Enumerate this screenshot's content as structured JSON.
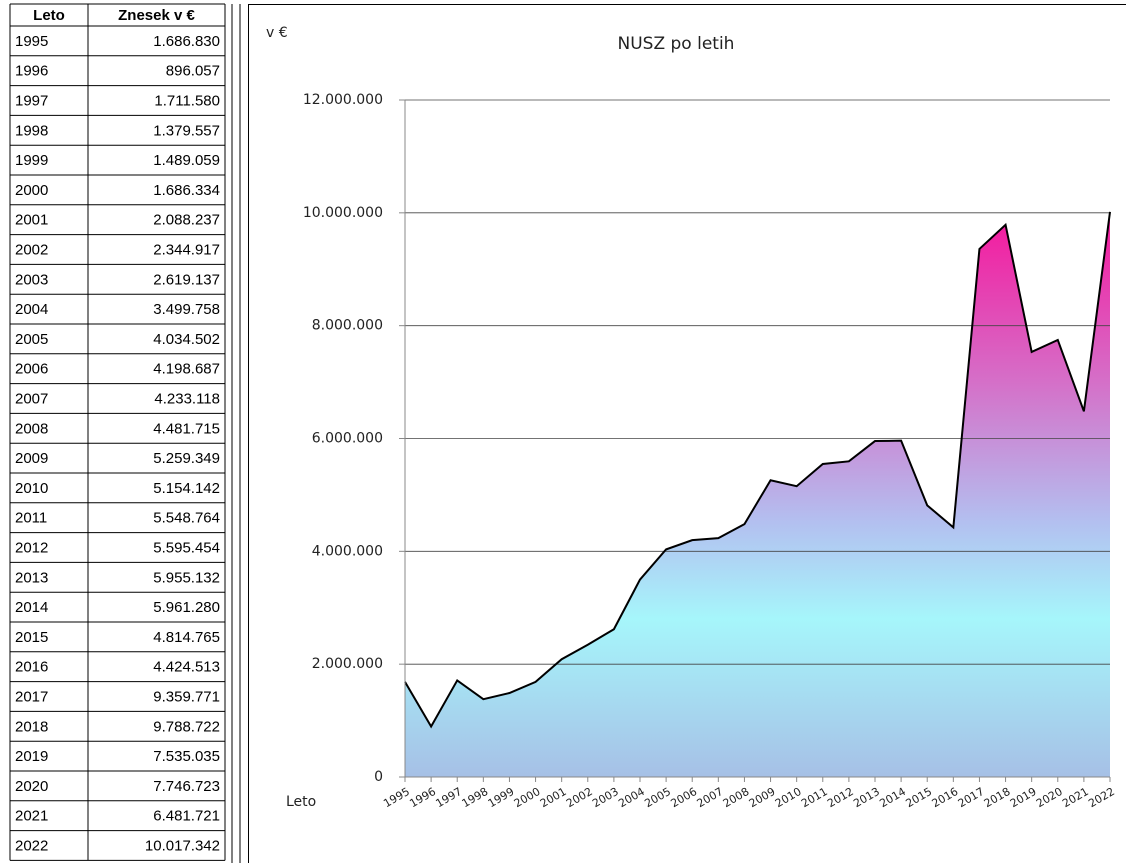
{
  "table": {
    "header": [
      "Leto",
      "Znesek v €"
    ],
    "rows": [
      [
        "1995",
        "1.686.830"
      ],
      [
        "1996",
        "896.057"
      ],
      [
        "1997",
        "1.711.580"
      ],
      [
        "1998",
        "1.379.557"
      ],
      [
        "1999",
        "1.489.059"
      ],
      [
        "2000",
        "1.686.334"
      ],
      [
        "2001",
        "2.088.237"
      ],
      [
        "2002",
        "2.344.917"
      ],
      [
        "2003",
        "2.619.137"
      ],
      [
        "2004",
        "3.499.758"
      ],
      [
        "2005",
        "4.034.502"
      ],
      [
        "2006",
        "4.198.687"
      ],
      [
        "2007",
        "4.233.118"
      ],
      [
        "2008",
        "4.481.715"
      ],
      [
        "2009",
        "5.259.349"
      ],
      [
        "2010",
        "5.154.142"
      ],
      [
        "2011",
        "5.548.764"
      ],
      [
        "2012",
        "5.595.454"
      ],
      [
        "2013",
        "5.955.132"
      ],
      [
        "2014",
        "5.961.280"
      ],
      [
        "2015",
        "4.814.765"
      ],
      [
        "2016",
        "4.424.513"
      ],
      [
        "2017",
        "9.359.771"
      ],
      [
        "2018",
        "9.788.722"
      ],
      [
        "2019",
        "7.535.035"
      ],
      [
        "2020",
        "7.746.723"
      ],
      [
        "2021",
        "6.481.721"
      ],
      [
        "2022",
        "10.017.342"
      ]
    ]
  },
  "chart_data": {
    "type": "area",
    "title": "NUSZ po letih",
    "y_label": "v €",
    "x_label": "Leto",
    "categories": [
      "1995",
      "1996",
      "1997",
      "1998",
      "1999",
      "2000",
      "2001",
      "2002",
      "2003",
      "2004",
      "2005",
      "2006",
      "2007",
      "2008",
      "2009",
      "2010",
      "2011",
      "2012",
      "2013",
      "2014",
      "2015",
      "2016",
      "2017",
      "2018",
      "2019",
      "2020",
      "2021",
      "2022"
    ],
    "values": [
      1686830,
      896057,
      1711580,
      1379557,
      1489059,
      1686334,
      2088237,
      2344917,
      2619137,
      3499758,
      4034502,
      4198687,
      4233118,
      4481715,
      5259349,
      5154142,
      5548764,
      5595454,
      5955132,
      5961280,
      4814765,
      4424513,
      9359771,
      9788722,
      7535035,
      7746723,
      6481721,
      10017342
    ],
    "ylim": [
      0,
      12000000
    ],
    "yticks": [
      0,
      {
        "value": 2000000,
        "label": "2.000.000"
      },
      {
        "value": 4000000,
        "label": "4.000.000"
      },
      {
        "value": 6000000,
        "label": "6.000.000"
      },
      {
        "value": 8000000,
        "label": "8.000.000"
      },
      {
        "value": 10000000,
        "label": "10.000.000"
      },
      {
        "value": 12000000,
        "label": "12.000.000"
      }
    ],
    "grid": true,
    "line_color": "#000000"
  }
}
